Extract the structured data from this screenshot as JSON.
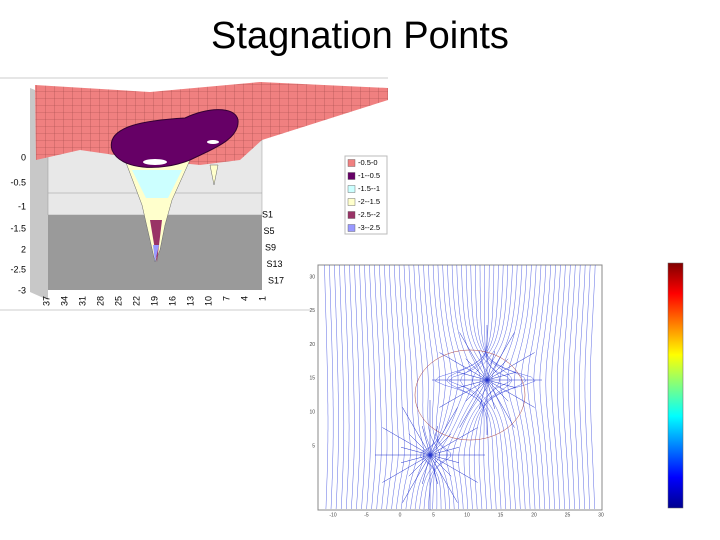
{
  "title": "Stagnation Points",
  "surface_plot": {
    "z_axis_labels": [
      "0",
      "-0.5",
      "-1",
      "-1.5",
      "2",
      "-2.5",
      "-3"
    ],
    "legend": [
      {
        "label": "-0.5-0",
        "color": "#f08080"
      },
      {
        "label": "-1--0.5",
        "color": "#660066"
      },
      {
        "label": "-1.5--1",
        "color": "#ccffff"
      },
      {
        "label": "-2--1.5",
        "color": "#ffffcc"
      },
      {
        "label": "-2.5--2",
        "color": "#993366"
      },
      {
        "label": "-3--2.5",
        "color": "#9999ff"
      }
    ],
    "x_axis_labels": [
      "37",
      "34",
      "31",
      "28",
      "25",
      "22",
      "19",
      "16",
      "13",
      "10",
      "7",
      "4",
      "1"
    ],
    "series_labels": [
      "S1",
      "S5",
      "S9",
      "S13",
      "S17"
    ]
  },
  "stream_plot": {
    "x_tick_labels": [
      "-10",
      "-5",
      "0",
      "5",
      "10",
      "15",
      "20",
      "25",
      "30"
    ],
    "y_tick_labels": [
      "30",
      "25",
      "20",
      "15",
      "10",
      "5"
    ]
  }
}
